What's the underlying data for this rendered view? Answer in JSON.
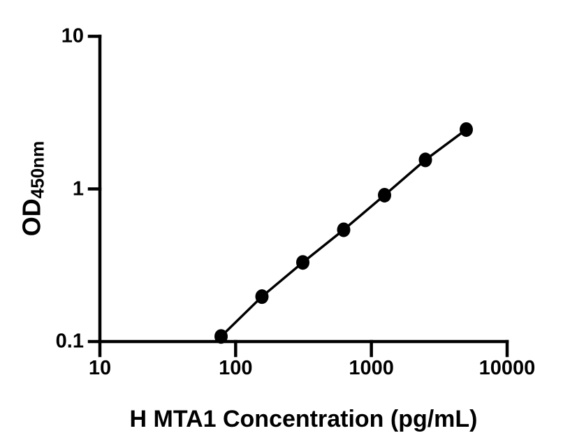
{
  "chart_data": {
    "type": "scatter",
    "xlabel": "H MTA1 Concentration (pg/mL)",
    "ylabel": "OD450nm",
    "ylabel_main": "OD",
    "ylabel_sub": "450nm",
    "x": [
      78.125,
      156.25,
      312.5,
      625,
      1250,
      2500,
      5000
    ],
    "y": [
      0.108,
      0.197,
      0.33,
      0.54,
      0.91,
      1.55,
      2.45
    ],
    "xscale": "log",
    "yscale": "log",
    "xlim": [
      10,
      10000
    ],
    "ylim": [
      0.1,
      10
    ],
    "xticks": [
      10,
      100,
      1000,
      10000
    ],
    "xticklabels": [
      "10",
      "100",
      "1000",
      "10000"
    ],
    "yticks": [
      0.1,
      1,
      10
    ],
    "yticklabels": [
      "0.1",
      "1",
      "10"
    ],
    "grid": false,
    "legend": "none",
    "line_color": "#000000",
    "marker_color": "#000000",
    "axis_color": "#000000",
    "background": "#ffffff"
  }
}
